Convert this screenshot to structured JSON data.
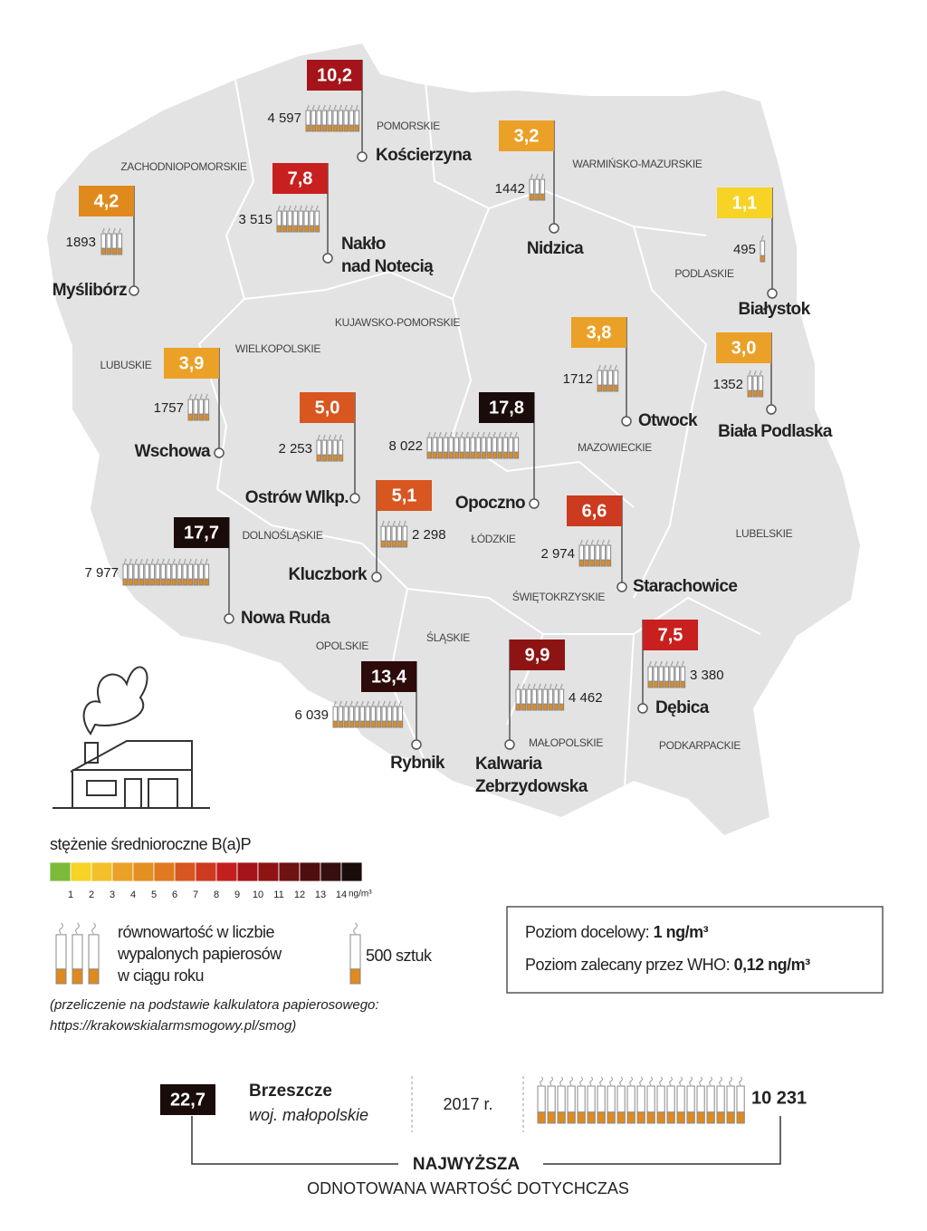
{
  "regions": [
    "ZACHODNIOPOMORSKIE",
    "POMORSKIE",
    "WARMIŃSKO-MAZURSKIE",
    "PODLASKIE",
    "KUJAWSKO-POMORSKIE",
    "WIELKOPOLSKIE",
    "LUBUSKIE",
    "MAZOWIECKIE",
    "DOLNOŚLĄSKIE",
    "ŁÓDZKIE",
    "LUBELSKIE",
    "ŚWIĘTOKRZYSKIE",
    "OPOLSKIE",
    "ŚLĄSKIE",
    "MAŁOPOLSKIE",
    "PODKARPACKIE"
  ],
  "cities": [
    {
      "value": "10,2",
      "color": "#a5141a",
      "count": "4 597",
      "name": [
        "Kościerzyna"
      ]
    },
    {
      "value": "4,2",
      "color": "#e08a1e",
      "count": "1893",
      "name": [
        "Myślibórz"
      ]
    },
    {
      "value": "7,8",
      "color": "#c8201f",
      "count": "3 515",
      "name": [
        "Nakło",
        "nad Notecią"
      ]
    },
    {
      "value": "3,2",
      "color": "#eba028",
      "count": "1442",
      "name": [
        "Nidzica"
      ]
    },
    {
      "value": "1,1",
      "color": "#f6d325",
      "count": "495",
      "name": [
        "Białystok"
      ]
    },
    {
      "value": "3,9",
      "color": "#eba028",
      "count": "1757",
      "name": [
        "Wschowa"
      ]
    },
    {
      "value": "3,8",
      "color": "#eba028",
      "count": "1712",
      "name": [
        "Otwock"
      ]
    },
    {
      "value": "3,0",
      "color": "#eba028",
      "count": "1352",
      "name": [
        "Biała Podlaska"
      ]
    },
    {
      "value": "5,0",
      "color": "#d8561f",
      "count": "2 253",
      "name": [
        "Ostrów Wlkp."
      ]
    },
    {
      "value": "17,8",
      "color": "#1a0c0a",
      "count": "8 022",
      "name": [
        "Opoczno"
      ]
    },
    {
      "value": "5,1",
      "color": "#d8561f",
      "count": "2 298",
      "name": [
        "Kluczbork"
      ]
    },
    {
      "value": "6,6",
      "color": "#cc3a1f",
      "count": "2 974",
      "name": [
        "Starachowice"
      ]
    },
    {
      "value": "17,7",
      "color": "#1a0c0a",
      "count": "7 977",
      "name": [
        "Nowa Ruda"
      ]
    },
    {
      "value": "7,5",
      "color": "#c8201f",
      "count": "3 380",
      "name": [
        "Dębica"
      ]
    },
    {
      "value": "9,9",
      "color": "#8e1414",
      "count": "4 462",
      "name": [
        "Kalwaria",
        "Zebrzydowska"
      ]
    },
    {
      "value": "13,4",
      "color": "#2e0b0b",
      "count": "6 039",
      "name": [
        "Rybnik"
      ]
    }
  ],
  "legend": {
    "title": "stężenie średnioroczne B(a)P",
    "scale_colors": [
      "#7cba3a",
      "#f6d325",
      "#f2c02a",
      "#eba028",
      "#e48f22",
      "#e07a20",
      "#d8561f",
      "#cc3a1f",
      "#c41f1f",
      "#a5141a",
      "#8e1414",
      "#6e1212",
      "#4f0e0e",
      "#361010",
      "#1a0c0a"
    ],
    "scale_labels": [
      "1",
      "2",
      "3",
      "4",
      "5",
      "6",
      "7",
      "8",
      "9",
      "10",
      "11",
      "12",
      "13",
      "14"
    ],
    "unit": "ng/m³",
    "cigarettes_lines": [
      "równowartość w liczbie",
      "wypalonych papierosów",
      "w ciągu roku"
    ],
    "unit_label": "500 sztuk",
    "note_lines": [
      "(przeliczenie na podstawie kalkulatora papierosowego:",
      "https://krakowskialarmsmogowy.pl/smog)"
    ]
  },
  "info_box": {
    "target_label": "Poziom docelowy: ",
    "target_value": "1 ng/m³",
    "who_label": "Poziom zalecany przez WHO: ",
    "who_value": "0,12 ng/m³"
  },
  "record": {
    "value": "22,7",
    "color": "#1a0c0a",
    "name": "Brzeszcze",
    "region": "woj. małopolskie",
    "year": "2017 r.",
    "count": "10 231",
    "headline": "NAJWYŻSZA",
    "subline": "ODNOTOWANA WARTOŚĆ DOTYCHCZAS"
  }
}
